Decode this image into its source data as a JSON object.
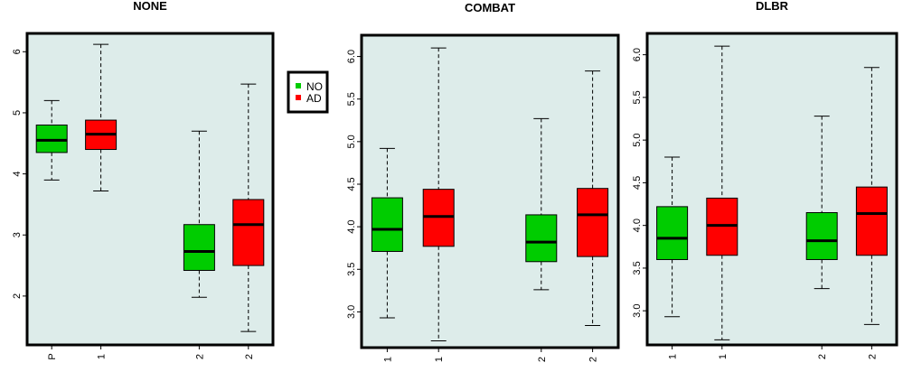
{
  "colors": {
    "panel_bg": "#DDECEA",
    "NO": "#00CC00",
    "AD": "#FF0000",
    "frame": "#000000"
  },
  "legend": {
    "placement": "between first and second panel, upper",
    "entries": [
      {
        "label": "NO",
        "color": "#00CC00"
      },
      {
        "label": "AD",
        "color": "#FF0000"
      }
    ]
  },
  "chart_data": [
    {
      "type": "box",
      "title": "NONE",
      "xlabel": "",
      "ylabel": "",
      "ylim": [
        1.2,
        6.3
      ],
      "yticks": [
        "2",
        "3",
        "4",
        "5",
        "6"
      ],
      "ytick_values": [
        2,
        3,
        4,
        5,
        6
      ],
      "grid": false,
      "boxes": [
        {
          "x": 1,
          "group": "NO",
          "xlabel": "P",
          "min": 3.9,
          "q1": 4.35,
          "median": 4.55,
          "q3": 4.8,
          "max": 5.2
        },
        {
          "x": 2,
          "group": "AD",
          "xlabel": "1",
          "min": 3.72,
          "q1": 4.4,
          "median": 4.65,
          "q3": 4.88,
          "max": 6.12
        },
        {
          "x": 4,
          "group": "NO",
          "xlabel": "2",
          "min": 1.98,
          "q1": 2.42,
          "median": 2.73,
          "q3": 3.17,
          "max": 4.7
        },
        {
          "x": 5,
          "group": "AD",
          "xlabel": "2",
          "min": 1.42,
          "q1": 2.5,
          "median": 3.17,
          "q3": 3.58,
          "max": 5.47
        }
      ]
    },
    {
      "type": "box",
      "title": "COMBAT",
      "xlabel": "",
      "ylabel": "",
      "ylim": [
        2.58,
        6.25
      ],
      "yticks": [
        "3.0",
        "3.5",
        "4.0",
        "4.5",
        "5.0",
        "5.5",
        "6.0"
      ],
      "ytick_values": [
        3.0,
        3.5,
        4.0,
        4.5,
        5.0,
        5.5,
        6.0
      ],
      "grid": false,
      "boxes": [
        {
          "x": 1,
          "group": "NO",
          "xlabel": "1",
          "min": 2.93,
          "q1": 3.71,
          "median": 3.97,
          "q3": 4.34,
          "max": 4.92
        },
        {
          "x": 2,
          "group": "AD",
          "xlabel": "1",
          "min": 2.66,
          "q1": 3.77,
          "median": 4.12,
          "q3": 4.44,
          "max": 6.1
        },
        {
          "x": 4,
          "group": "NO",
          "xlabel": "2",
          "min": 3.26,
          "q1": 3.59,
          "median": 3.82,
          "q3": 4.14,
          "max": 5.27
        },
        {
          "x": 5,
          "group": "AD",
          "xlabel": "2",
          "min": 2.84,
          "q1": 3.65,
          "median": 4.14,
          "q3": 4.45,
          "max": 5.83
        }
      ]
    },
    {
      "type": "box",
      "title": "DLBR",
      "xlabel": "",
      "ylabel": "",
      "ylim": [
        2.6,
        6.25
      ],
      "yticks": [
        "3.0",
        "3.5",
        "4.0",
        "4.5",
        "5.0",
        "5.5",
        "6.0"
      ],
      "ytick_values": [
        3.0,
        3.5,
        4.0,
        4.5,
        5.0,
        5.5,
        6.0
      ],
      "grid": false,
      "boxes": [
        {
          "x": 1,
          "group": "NO",
          "xlabel": "1",
          "min": 2.93,
          "q1": 3.6,
          "median": 3.85,
          "q3": 4.22,
          "max": 4.8
        },
        {
          "x": 2,
          "group": "AD",
          "xlabel": "1",
          "min": 2.66,
          "q1": 3.65,
          "median": 4.0,
          "q3": 4.32,
          "max": 6.1
        },
        {
          "x": 4,
          "group": "NO",
          "xlabel": "2",
          "min": 3.26,
          "q1": 3.6,
          "median": 3.82,
          "q3": 4.15,
          "max": 5.28
        },
        {
          "x": 5,
          "group": "AD",
          "xlabel": "2",
          "min": 2.84,
          "q1": 3.65,
          "median": 4.14,
          "q3": 4.45,
          "max": 5.85
        }
      ]
    }
  ]
}
